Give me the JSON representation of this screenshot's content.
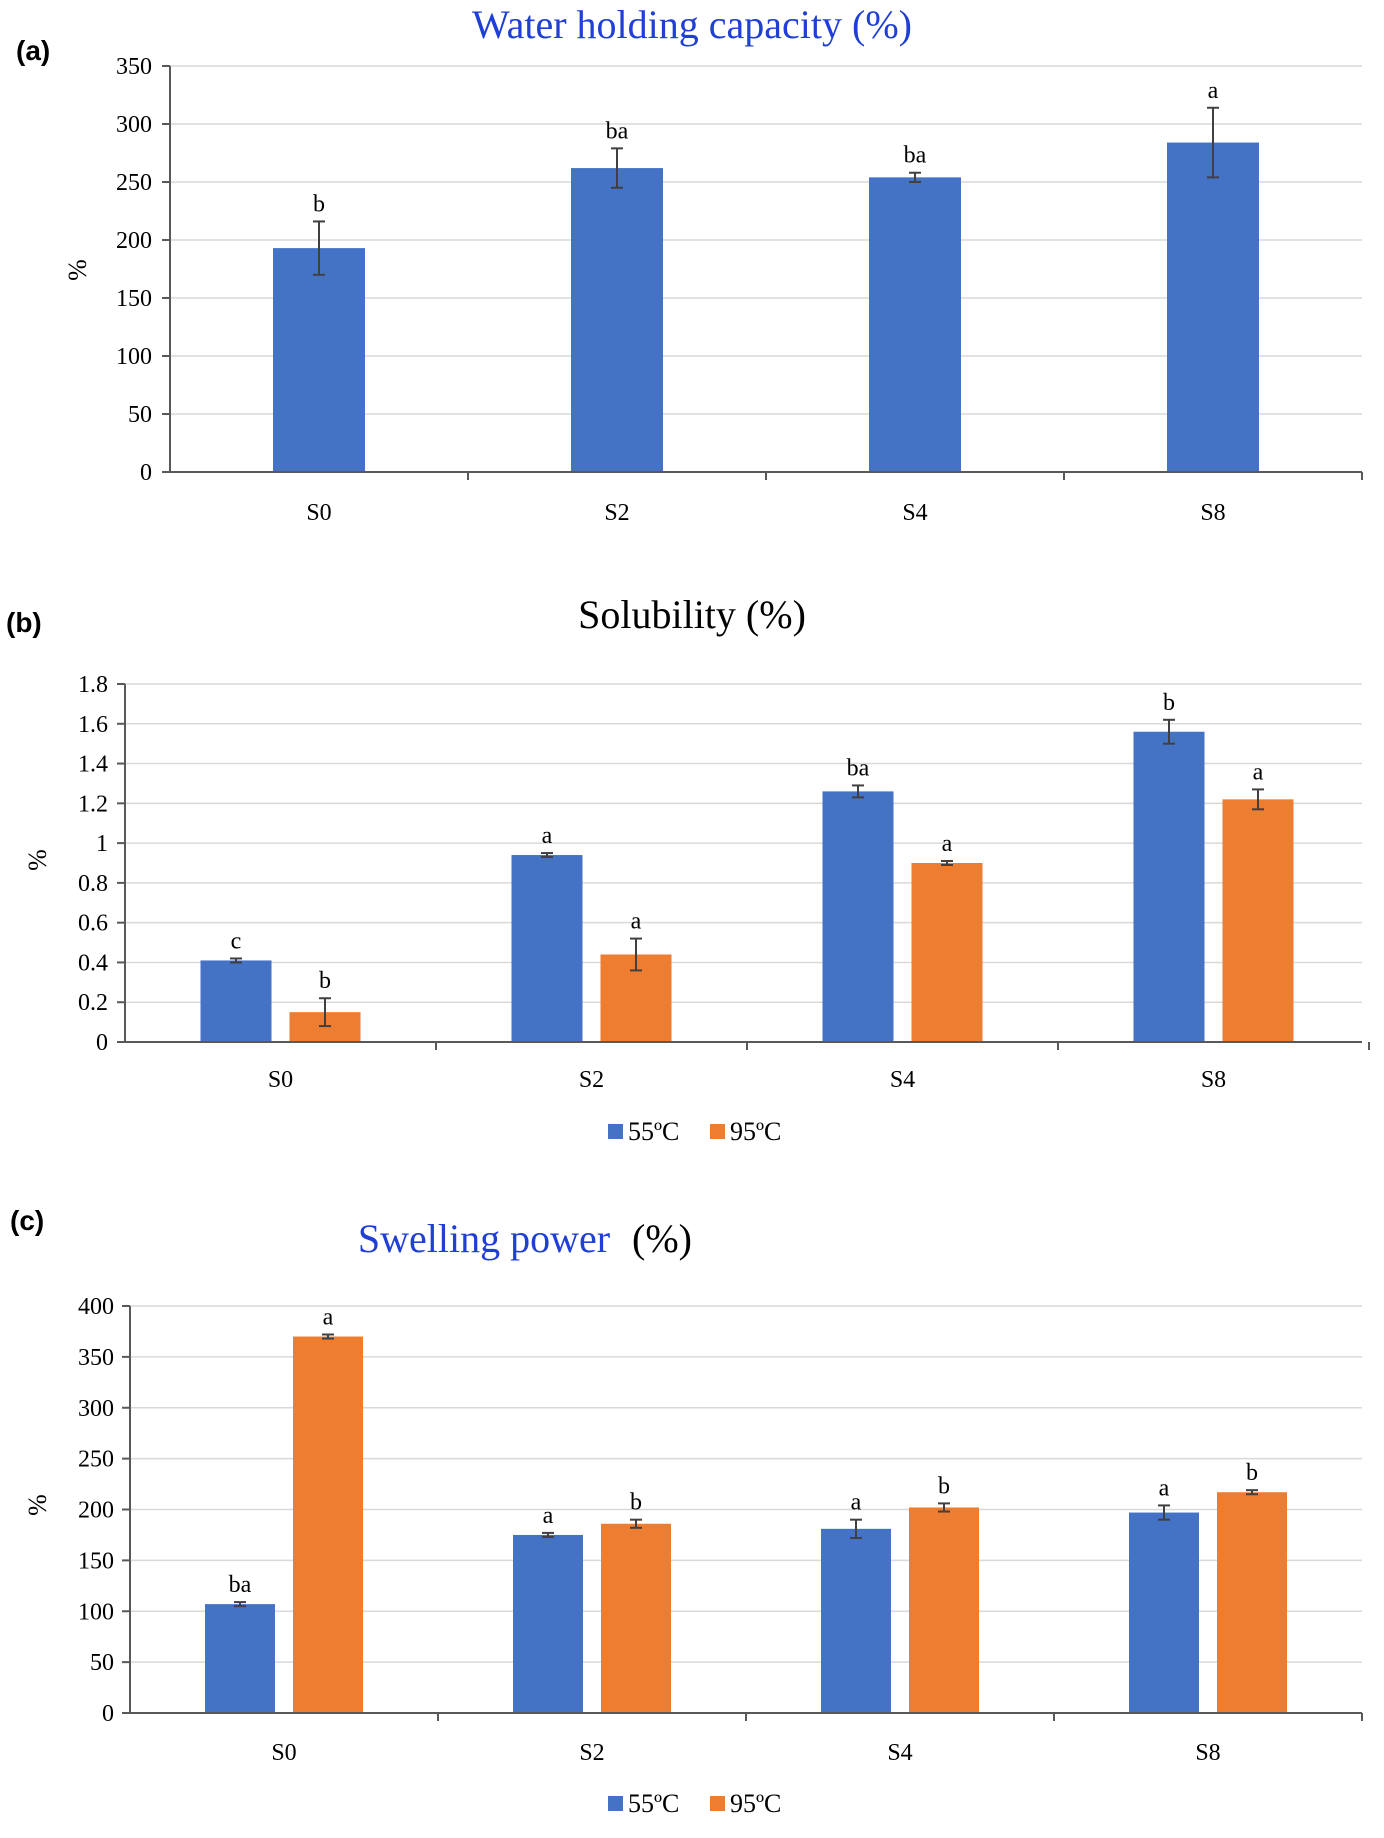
{
  "chart_data": [
    {
      "type": "bar",
      "panel": "(a)",
      "title": "Water holding capacity (%)",
      "title_color": "#1f3fd6",
      "ylabel": "%",
      "ylim": [
        0,
        350
      ],
      "yticks": [
        0,
        50,
        100,
        150,
        200,
        250,
        300,
        350
      ],
      "grid": true,
      "categories": [
        "S0",
        "S2",
        "S4",
        "S8"
      ],
      "series": [
        {
          "color": "#4472c4",
          "values": [
            193,
            262,
            254,
            284
          ],
          "errors": [
            23,
            17,
            4,
            30
          ],
          "labels": [
            "b",
            "ba",
            "ba",
            "a"
          ]
        }
      ]
    },
    {
      "type": "bar",
      "panel": "(b)",
      "title": "Solubility (%)",
      "title_color": "#000000",
      "ylabel": "%",
      "ylim": [
        0,
        1.8
      ],
      "yticks": [
        "0",
        "0.2",
        "0.4",
        "0.6",
        "0.8",
        "1",
        "1.2",
        "1.4",
        "1.6",
        "1.8"
      ],
      "grid": true,
      "categories": [
        "S0",
        "S2",
        "S4",
        "S8"
      ],
      "legend_position": "bottom-center",
      "series": [
        {
          "name": "55ºC",
          "color": "#4472c4",
          "values": [
            0.41,
            0.94,
            1.26,
            1.56
          ],
          "errors": [
            0.01,
            0.01,
            0.03,
            0.06
          ],
          "labels": [
            "c",
            "a",
            "ba",
            "b"
          ]
        },
        {
          "name": "95ºC",
          "color": "#ed7d31",
          "values": [
            0.15,
            0.44,
            0.9,
            1.22
          ],
          "errors": [
            0.07,
            0.08,
            0.01,
            0.05
          ],
          "labels": [
            "b",
            "a",
            "a",
            "a"
          ]
        }
      ]
    },
    {
      "type": "bar",
      "panel": "(c)",
      "title": "Swelling power",
      "title_suffix": "(%)",
      "title_color": "#1f3fd6",
      "ylabel": "%",
      "ylim": [
        0,
        400
      ],
      "yticks": [
        0,
        50,
        100,
        150,
        200,
        250,
        300,
        350,
        400
      ],
      "grid": true,
      "categories": [
        "S0",
        "S2",
        "S4",
        "S8"
      ],
      "legend_position": "bottom-center",
      "series": [
        {
          "name": "55ºC",
          "color": "#4472c4",
          "values": [
            107,
            175,
            181,
            197
          ],
          "errors": [
            2,
            2,
            9,
            7
          ],
          "labels": [
            "ba",
            "a",
            "a",
            "a"
          ]
        },
        {
          "name": "95ºC",
          "color": "#ed7d31",
          "values": [
            370,
            186,
            202,
            217
          ],
          "errors": [
            2,
            4,
            4,
            2
          ],
          "labels": [
            "a",
            "b",
            "b",
            "b"
          ]
        }
      ]
    }
  ]
}
